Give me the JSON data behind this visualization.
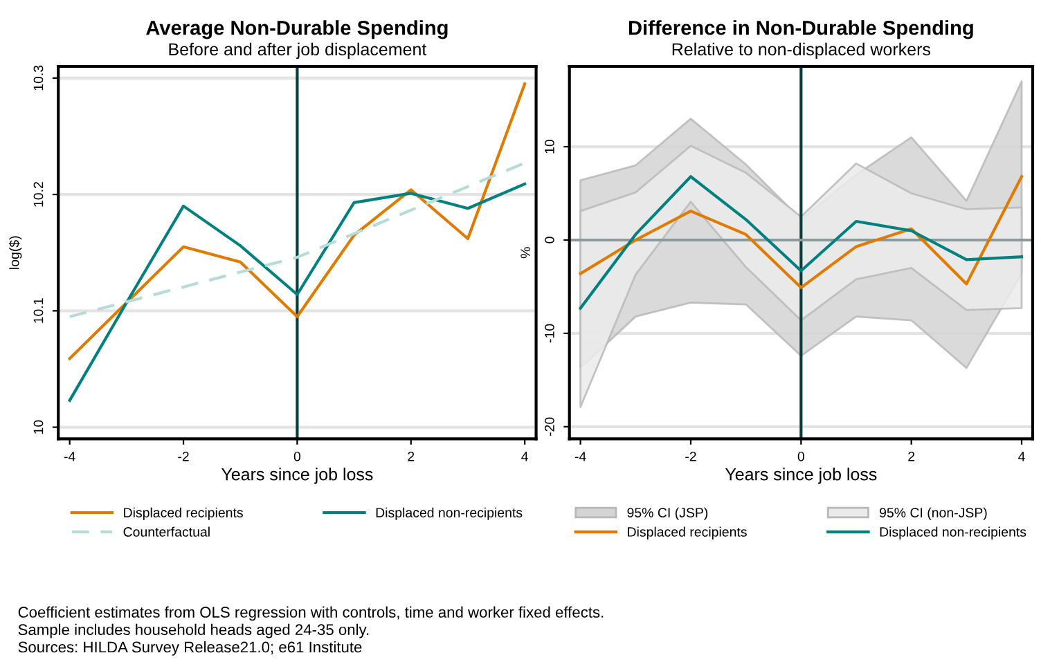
{
  "chart_data": [
    {
      "type": "line",
      "title": "Average Non-Durable Spending",
      "subtitle": "Before and after job displacement",
      "xlabel": "Years since job loss",
      "ylabel": "log($)",
      "x": [
        -4,
        -3,
        -2,
        -1,
        0,
        1,
        2,
        3,
        4
      ],
      "series": [
        {
          "name": "Displaced recipients",
          "color": "#e07b00",
          "values": [
            10.059,
            10.107,
            10.155,
            10.142,
            10.095,
            10.165,
            10.204,
            10.162,
            10.295
          ]
        },
        {
          "name": "Displaced non-recipients",
          "color": "#00807f",
          "values": [
            10.023,
            10.107,
            10.19,
            10.156,
            10.114,
            10.193,
            10.201,
            10.188,
            10.209
          ]
        },
        {
          "name": "Counterfactual",
          "color": "#b5dcd9",
          "line_style": "dashed",
          "x": [
            -4,
            0,
            4
          ],
          "values": [
            10.095,
            10.146,
            10.227
          ]
        }
      ],
      "xlim": [
        -4.2,
        4.2
      ],
      "xticks": [
        -4,
        -2,
        0,
        2,
        4
      ],
      "ylim": [
        9.99,
        10.31
      ],
      "yticks": [
        10,
        10.1,
        10.2,
        10.3
      ],
      "ref_lines": [
        {
          "axis": "x",
          "value": 0,
          "color": "#0b3b3b"
        }
      ],
      "grid": "y",
      "legend": "bottom",
      "marker": "none",
      "annotations": [
        "Coefficient estimates from OLS regression with controls, time and worker fixed effects.",
        "Sample includes household heads aged 24-35 only.",
        "Sources: HILDA Survey Release21.0; e61 Institute"
      ]
    },
    {
      "type": "line",
      "title": "Difference in Non-Durable Spending",
      "subtitle": "Relative to non-displaced workers",
      "xlabel": "Years since job loss",
      "ylabel": "%",
      "x": [
        -4,
        -3,
        -2,
        -1,
        0,
        1,
        2,
        3,
        4
      ],
      "series": [
        {
          "name": "95% CI (JSP)",
          "type": "area",
          "color": "#d4d4d4",
          "values": [
            null,
            null,
            null,
            null,
            null,
            null,
            null,
            null,
            null
          ]
        },
        {
          "name": "95% CI (non-JSP)",
          "type": "area",
          "color": "#ebebeb",
          "values": [
            null,
            null,
            null,
            null,
            null,
            null,
            null,
            null,
            null
          ]
        },
        {
          "name": "Displaced recipients",
          "color": "#e07b00",
          "values": [
            -3.6,
            0,
            3.1,
            0.6,
            -5.1,
            -0.7,
            1.2,
            -4.7,
            6.8
          ],
          "lower": [
            -13.7,
            -8.2,
            -6.7,
            -6.9,
            -12.4,
            -8.2,
            -8.6,
            -13.7,
            -3.6
          ],
          "upper": [
            6.4,
            8.0,
            13.0,
            8.1,
            2.2,
            7.0,
            11.0,
            4.2,
            17.0
          ]
        },
        {
          "name": "Displaced non-recipients",
          "color": "#00807f",
          "values": [
            -7.3,
            0.6,
            6.8,
            2.2,
            -3.3,
            2.0,
            1.0,
            -2.1,
            -1.8
          ],
          "lower": [
            -17.9,
            -3.7,
            4.1,
            -2.9,
            -8.6,
            -4.2,
            -3.0,
            -7.5,
            -7.3
          ],
          "upper": [
            3.1,
            5.1,
            10.1,
            7.2,
            2.5,
            8.2,
            5.0,
            3.3,
            3.5
          ]
        }
      ],
      "xlim": [
        -4.2,
        4.2
      ],
      "xticks": [
        -4,
        -2,
        0,
        2,
        4
      ],
      "ylim": [
        -21.3,
        18.6
      ],
      "yticks": [
        -20,
        -10,
        0,
        10
      ],
      "ref_lines": [
        {
          "axis": "x",
          "value": 0,
          "color": "#0b3b3b"
        },
        {
          "axis": "y",
          "value": 0,
          "color": "#8a9a9a"
        }
      ],
      "grid": "y",
      "legend": "bottom",
      "marker": "none"
    }
  ]
}
